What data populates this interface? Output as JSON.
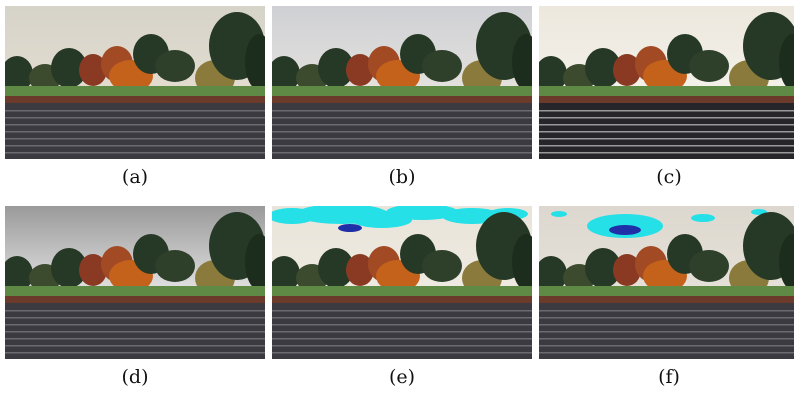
{
  "panels": [
    {
      "id": "a",
      "caption": "(a)",
      "variant": "original"
    },
    {
      "id": "b",
      "caption": "(b)",
      "variant": "hazy"
    },
    {
      "id": "c",
      "caption": "(c)",
      "variant": "high-contrast"
    },
    {
      "id": "d",
      "caption": "(d)",
      "variant": "dark-sky-halo"
    },
    {
      "id": "e",
      "caption": "(e)",
      "variant": "cyan-sky-artifacts"
    },
    {
      "id": "f",
      "caption": "(f)",
      "variant": "cyan-blue-blob"
    }
  ],
  "colors": {
    "sky_default": "#d9d5cb",
    "water": "#3a3a40",
    "grass": "#5f8a45",
    "foliage_orange": "#c4621c",
    "foliage_red": "#8a3a22",
    "foliage_dark": "#263826",
    "artifact_cyan": "#25e0e6",
    "artifact_blue": "#1e2fa8"
  }
}
